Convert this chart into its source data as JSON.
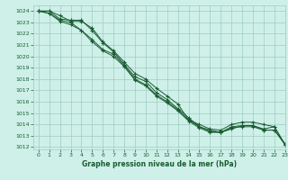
{
  "title": "Graphe pression niveau de la mer (hPa)",
  "bg_color": "#cef0e8",
  "grid_color": "#a0ccc4",
  "line_color": "#1a5c32",
  "xlim": [
    -0.5,
    23
  ],
  "ylim": [
    1011.8,
    1024.5
  ],
  "xticks": [
    0,
    1,
    2,
    3,
    4,
    5,
    6,
    7,
    8,
    9,
    10,
    11,
    12,
    13,
    14,
    15,
    16,
    17,
    18,
    19,
    20,
    21,
    22,
    23
  ],
  "yticks": [
    1012,
    1013,
    1014,
    1015,
    1016,
    1017,
    1018,
    1019,
    1020,
    1021,
    1022,
    1023,
    1024
  ],
  "series": [
    [
      1024.0,
      1024.0,
      1023.6,
      1023.1,
      1023.1,
      1022.5,
      1021.3,
      1020.5,
      1019.5,
      1018.5,
      1018.0,
      1017.2,
      1016.5,
      1015.8,
      1014.4,
      1014.0,
      1013.6,
      1013.5,
      1014.0,
      1014.2,
      1014.2,
      1014.0,
      1013.8,
      1012.2
    ],
    [
      1024.0,
      1024.0,
      1023.3,
      1023.2,
      1023.2,
      1022.3,
      1021.2,
      1020.4,
      1019.3,
      1018.2,
      1017.8,
      1016.8,
      1016.2,
      1015.4,
      1014.6,
      1013.8,
      1013.5,
      1013.3,
      1013.6,
      1013.9,
      1013.9,
      1013.6,
      1013.8,
      1012.2
    ],
    [
      1024.0,
      1023.8,
      1023.2,
      1023.0,
      1022.3,
      1021.5,
      1020.6,
      1020.2,
      1019.2,
      1018.0,
      1017.5,
      1016.6,
      1016.0,
      1015.3,
      1014.4,
      1013.8,
      1013.4,
      1013.3,
      1013.7,
      1013.8,
      1013.8,
      1013.5,
      1013.5,
      1012.3
    ],
    [
      1024.0,
      1023.8,
      1023.1,
      1022.8,
      1022.3,
      1021.3,
      1020.5,
      1020.0,
      1019.1,
      1017.9,
      1017.4,
      1016.5,
      1015.9,
      1015.2,
      1014.3,
      1013.7,
      1013.3,
      1013.3,
      1013.8,
      1013.9,
      1013.9,
      1013.5,
      1013.5,
      1012.2
    ]
  ]
}
